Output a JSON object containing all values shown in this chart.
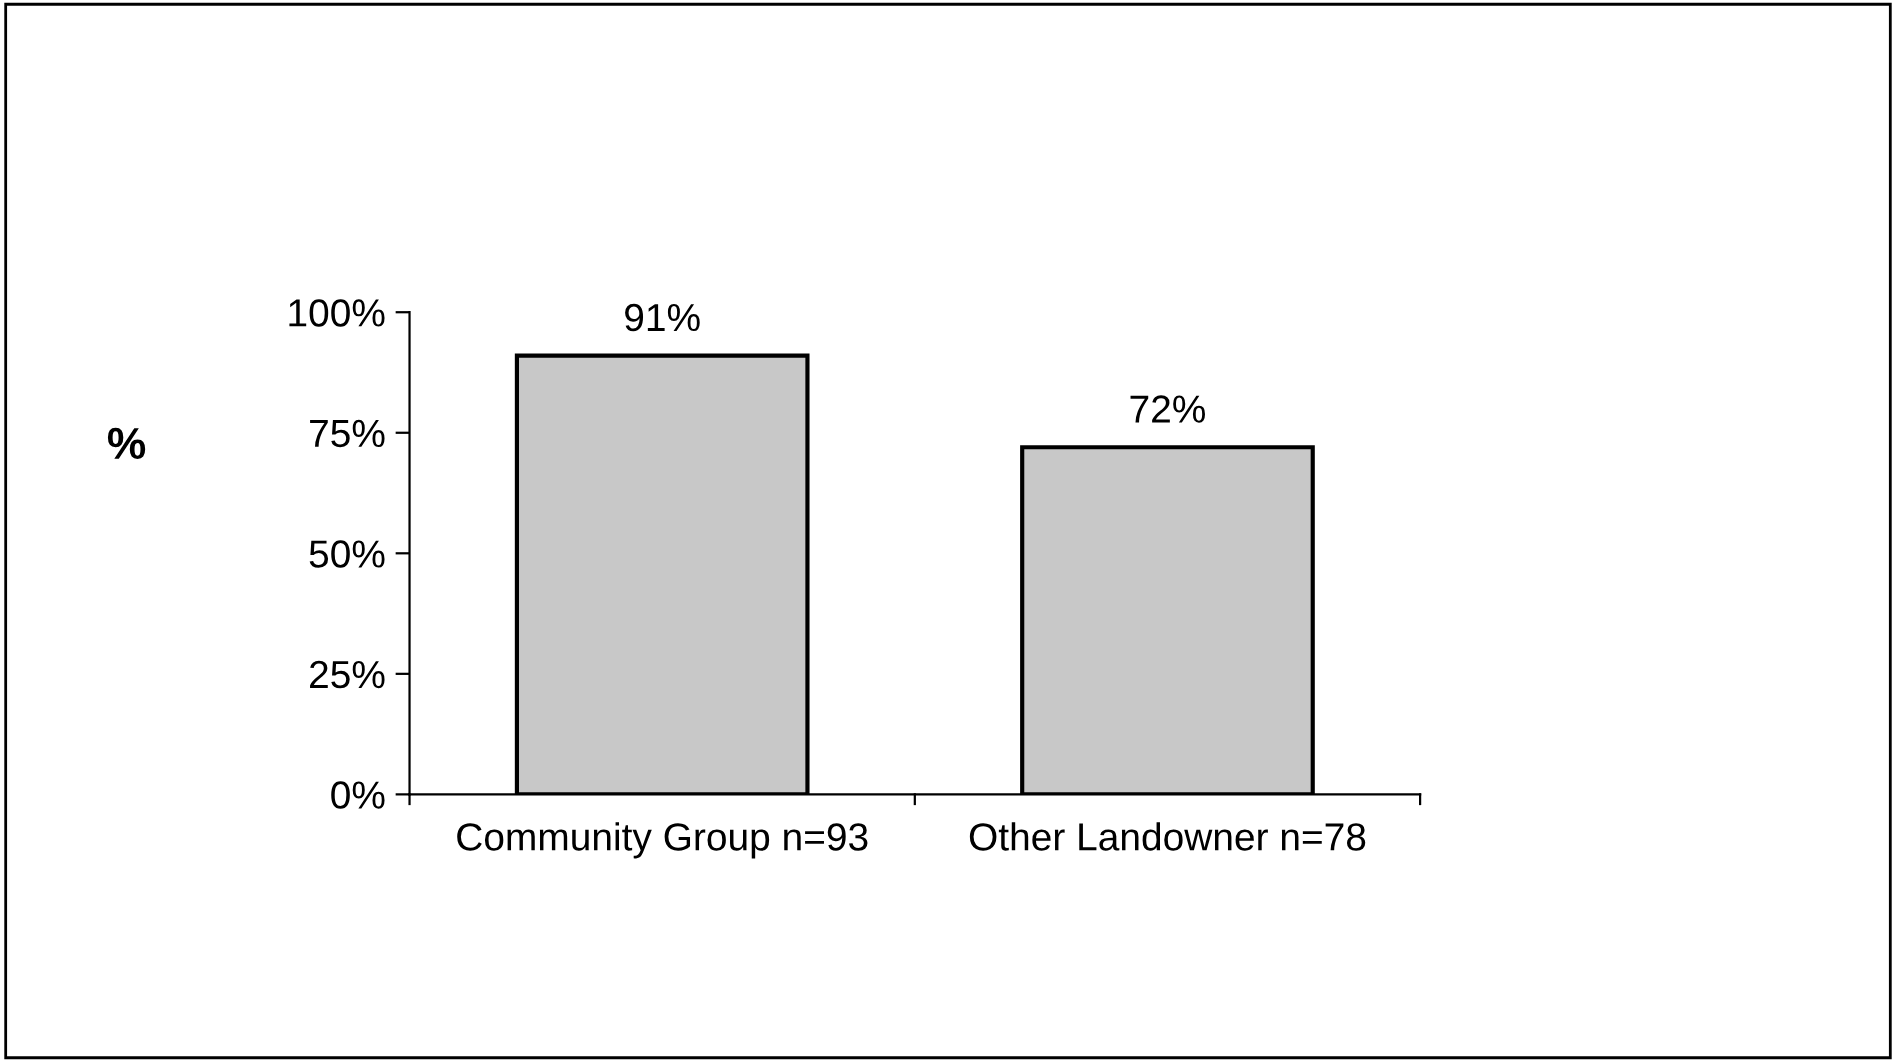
{
  "chart_data": {
    "type": "bar",
    "ylabel": "%",
    "categories": [
      "Community Group n=93",
      "Other Landowner n=78"
    ],
    "values": [
      91,
      72
    ],
    "color": "#c8c8c8",
    "value_labels": [
      "91%",
      "72%"
    ],
    "ylim": [
      0,
      100
    ],
    "yticks": [
      {
        "value": 0,
        "label": "0%"
      },
      {
        "value": 25,
        "label": "25%"
      },
      {
        "value": 50,
        "label": "50%"
      },
      {
        "value": 75,
        "label": "75%"
      },
      {
        "value": 100,
        "label": "100%"
      }
    ],
    "grid": false,
    "legend": false
  }
}
